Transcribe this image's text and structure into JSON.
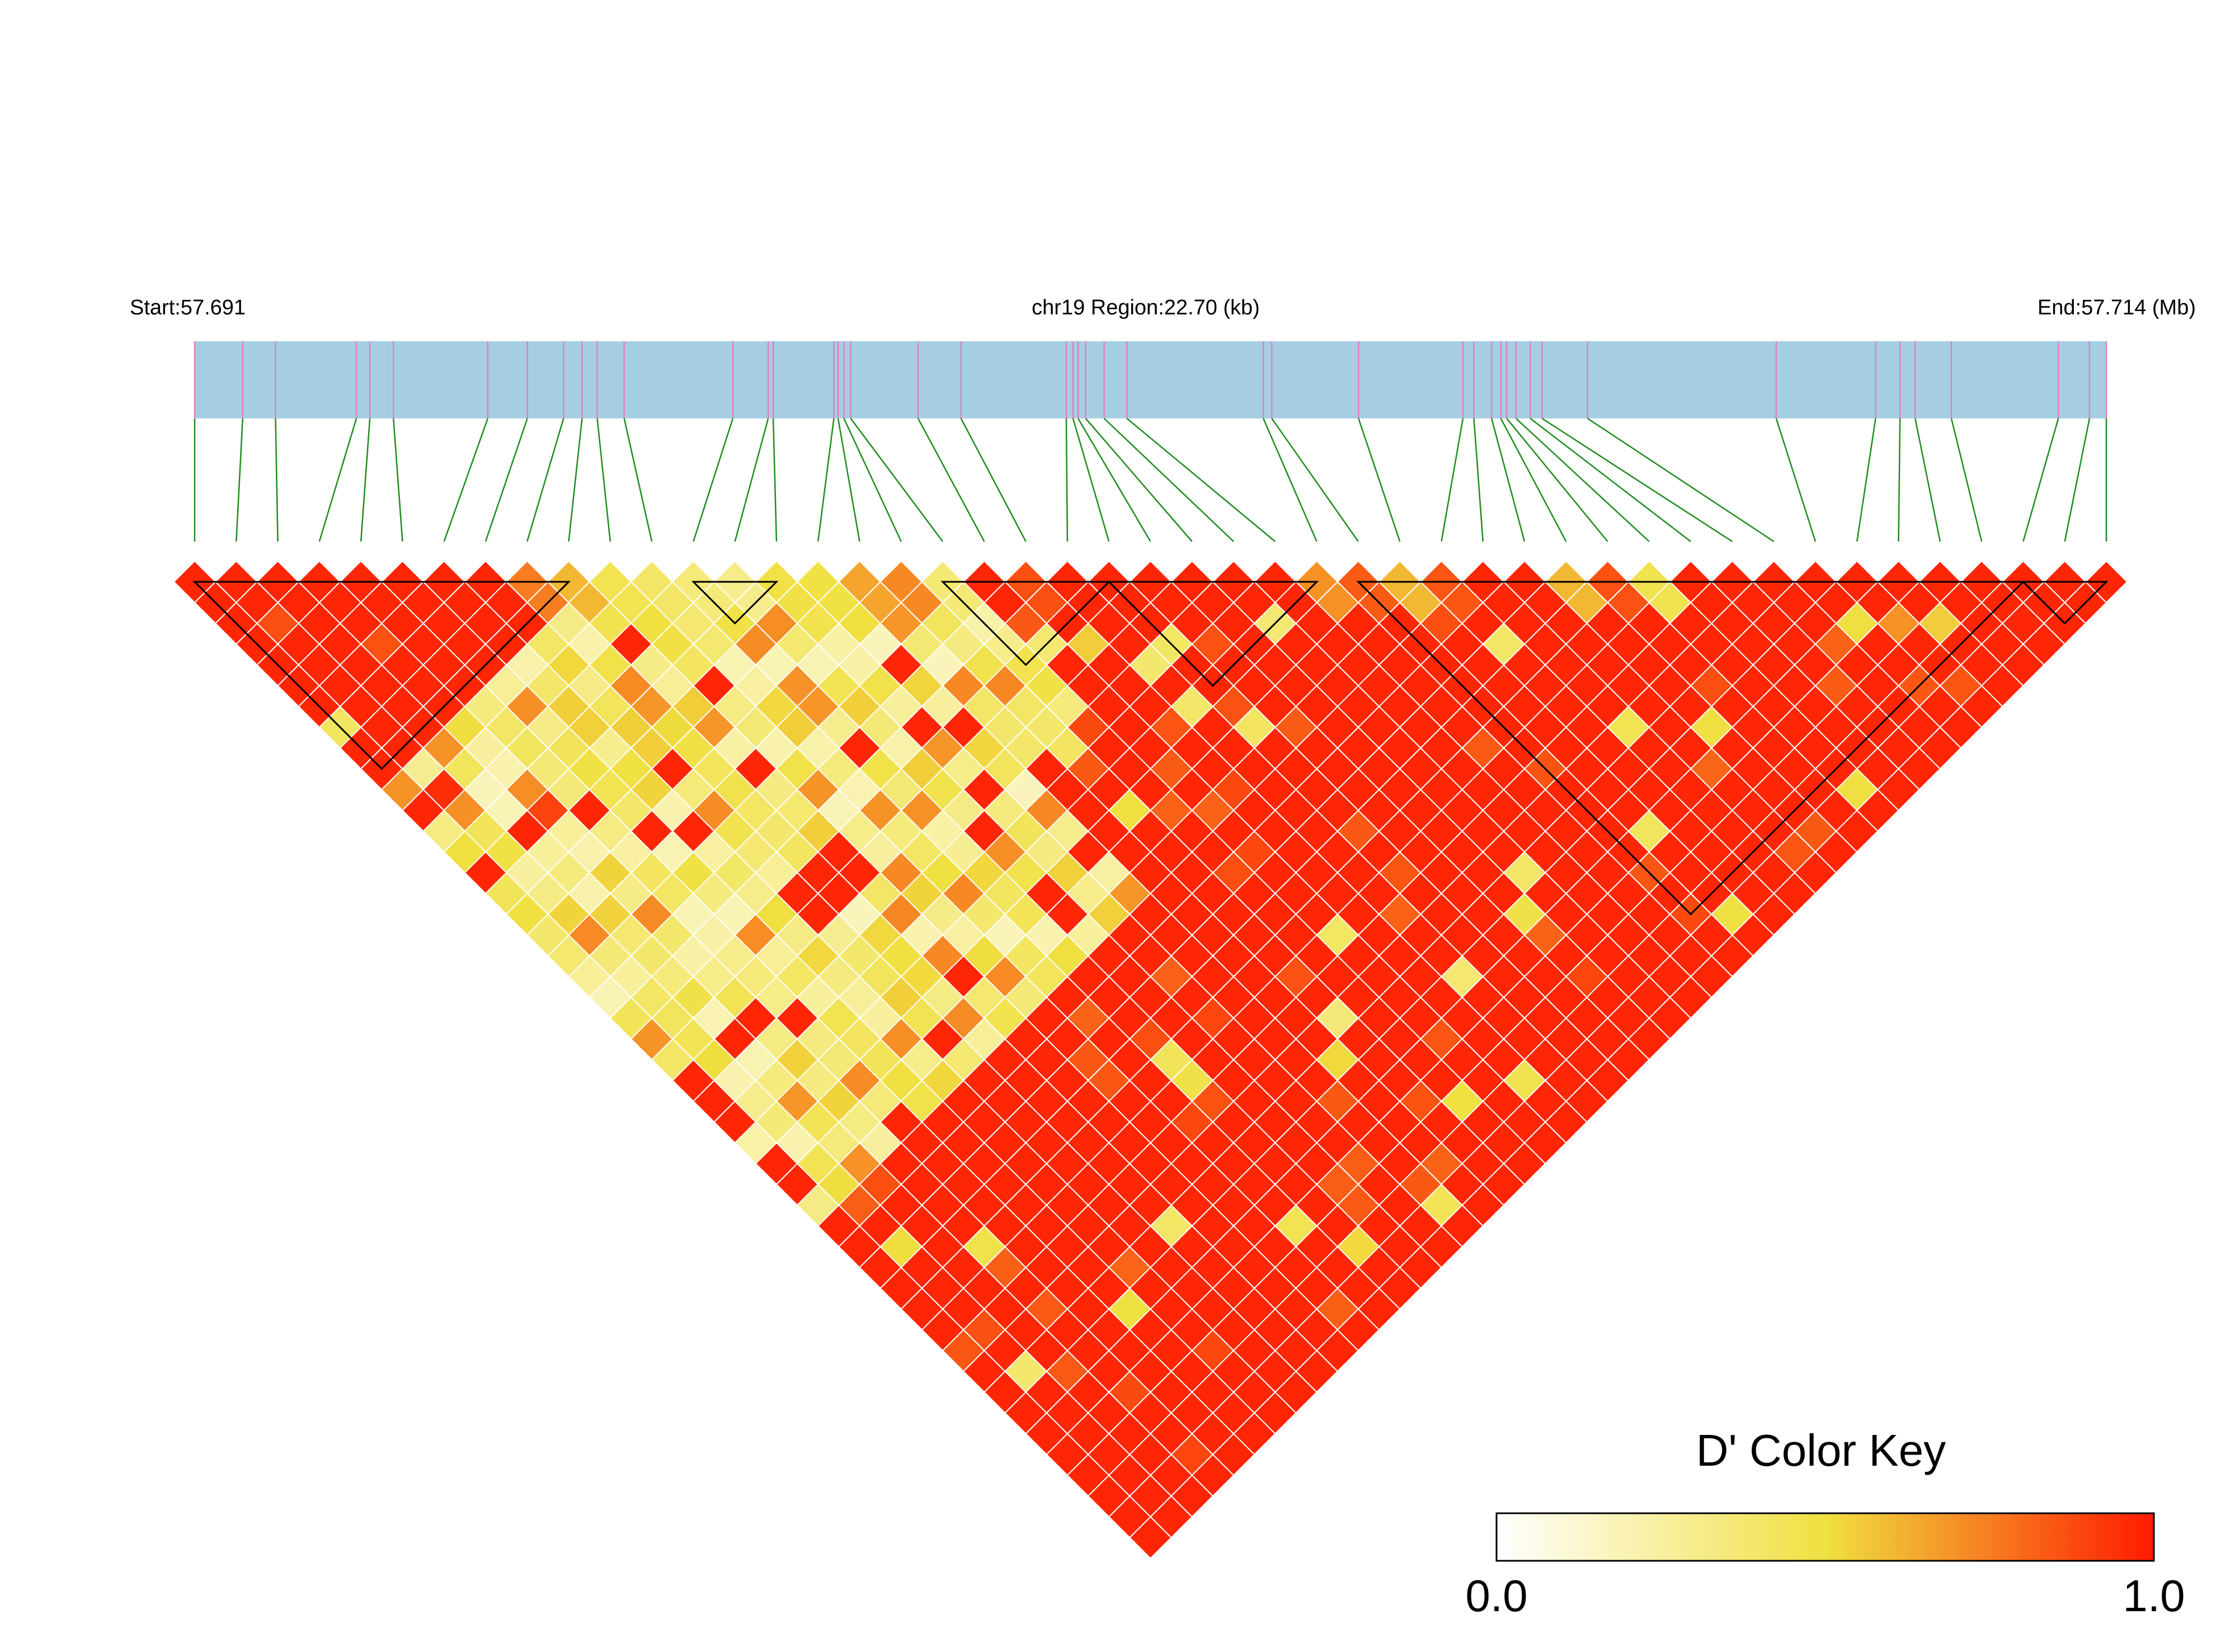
{
  "chart_data": {
    "type": "heatmap",
    "subtype": "LD block plot (triangular D' heatmap)",
    "start_label": "Start:57.691",
    "region_label": "chr19 Region:22.70 (kb)",
    "end_label": "End:57.714 (Mb)",
    "chromosome": "chr19",
    "region_start_mb": 57.691,
    "region_end_mb": 57.714,
    "region_size_kb": 22.7,
    "n_snps": 47,
    "snp_positions_kb": [
      0.0,
      0.57,
      0.96,
      1.92,
      2.08,
      2.36,
      3.48,
      3.95,
      4.38,
      4.6,
      4.78,
      5.1,
      6.39,
      6.81,
      6.87,
      7.59,
      7.64,
      7.71,
      7.79,
      8.59,
      9.1,
      10.35,
      10.43,
      10.49,
      10.58,
      10.8,
      11.07,
      12.69,
      12.79,
      13.82,
      15.06,
      15.19,
      15.4,
      15.51,
      15.58,
      15.69,
      15.86,
      16.0,
      16.54,
      18.78,
      19.96,
      20.25,
      20.43,
      20.86,
      22.13,
      22.5,
      22.7
    ],
    "bar_colors": {
      "track": "#a6cee3",
      "snp_tick": "#e080c0",
      "connector": "#1e8c1e",
      "block_outline": "#000000",
      "cell_border": "#ffffff"
    },
    "haplotype_blocks": [
      [
        0,
        9
      ],
      [
        12,
        14
      ],
      [
        18,
        22
      ],
      [
        22,
        27
      ],
      [
        28,
        44
      ],
      [
        44,
        46
      ]
    ],
    "dprime_matrix": {
      "description": "D' between SNP i and SNP j for i<j; default row = high LD (red) except zones and listed overrides",
      "default_high": 0.97,
      "overrides": [
        [
          8,
          9,
          0.75
        ],
        [
          9,
          10,
          0.6
        ],
        [
          10,
          11,
          0.45
        ],
        [
          11,
          12,
          0.4
        ],
        [
          12,
          13,
          0.35
        ],
        [
          13,
          14,
          0.3
        ],
        [
          15,
          17,
          0.5
        ],
        [
          16,
          17,
          0.65
        ],
        [
          27,
          28,
          0.7
        ],
        [
          29,
          30,
          0.6
        ],
        [
          1,
          11,
          0.95
        ],
        [
          3,
          14,
          0.9
        ],
        [
          6,
          19,
          0.25
        ],
        [
          20,
          23,
          0.55
        ],
        [
          30,
          33,
          0.4
        ],
        [
          33,
          34,
          0.6
        ],
        [
          40,
          42,
          0.7
        ],
        [
          41,
          43,
          0.55
        ]
      ]
    },
    "color_key": {
      "title": "D' Color Key",
      "min_label": "0.0",
      "max_label": "1.0",
      "min": 0.0,
      "max": 1.0,
      "low_color": "#ffffff",
      "mid_color": "#f0e040",
      "high_color": "#ff1a00"
    }
  }
}
